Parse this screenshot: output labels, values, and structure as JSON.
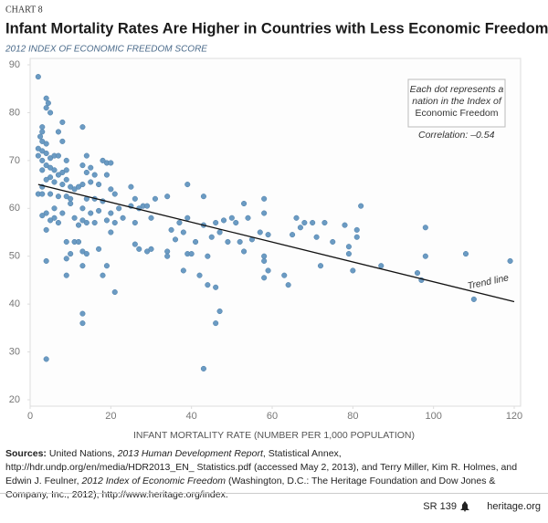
{
  "chart_data": {
    "type": "scatter",
    "kicker": "CHART 8",
    "title": "Infant Mortality Rates Are Higher in Countries with Less Economic Freedom",
    "ylabel": "2012 INDEX OF ECONOMIC FREEDOM SCORE",
    "xlabel": "INFANT MORTALITY RATE (NUMBER PER 1,000 POPULATION)",
    "note": [
      "Each dot represents a",
      "nation in the Index of",
      "Economic Freedom"
    ],
    "correlation": "Correlation: –0.54",
    "trend": {
      "name": "Trend line",
      "x": [
        2,
        120
      ],
      "values": [
        65,
        40.5
      ],
      "color": "#111111"
    },
    "xlim": [
      0,
      120
    ],
    "xticks": [
      0,
      20,
      40,
      60,
      80,
      100,
      120
    ],
    "ylim": [
      20,
      90
    ],
    "yticks": [
      20,
      30,
      40,
      50,
      60,
      70,
      80,
      90
    ],
    "color": "#6b9bc3",
    "x": [
      2,
      4,
      4.5,
      4,
      5,
      3,
      3,
      2.5,
      3,
      4,
      2,
      3,
      4,
      2,
      5,
      3,
      6,
      7,
      4,
      5,
      3,
      6,
      8,
      7,
      5,
      4,
      6,
      8,
      3,
      5,
      2,
      3,
      7,
      9,
      10,
      6,
      4,
      8,
      3,
      6,
      5,
      7,
      4,
      9,
      10,
      9,
      4,
      9,
      4,
      8,
      7,
      8,
      9,
      9,
      9,
      10,
      11,
      10,
      11,
      12,
      11,
      13,
      14,
      13,
      15,
      14,
      16,
      13,
      12,
      15,
      17,
      14,
      16,
      18,
      13,
      15,
      17,
      14,
      13,
      16,
      12,
      13,
      14,
      17,
      13,
      19,
      18,
      13,
      13,
      19,
      18,
      20,
      19,
      20,
      21,
      22,
      20,
      19,
      21,
      20,
      23,
      21,
      25,
      26,
      27,
      25,
      26,
      28,
      29,
      30,
      26,
      27,
      29,
      31,
      30,
      34,
      35,
      34,
      34,
      36,
      37,
      38,
      39,
      38,
      39,
      39,
      40,
      41,
      42,
      43,
      43,
      44,
      44,
      45,
      46,
      47,
      48,
      47,
      46,
      46,
      43,
      49,
      50,
      51,
      52,
      53,
      53,
      54,
      55,
      57,
      58,
      58,
      58,
      58,
      59,
      59,
      58,
      63,
      64,
      65,
      66,
      67,
      68,
      70,
      71,
      72,
      73,
      75,
      78,
      79,
      79,
      80,
      81,
      81,
      82,
      87,
      96,
      97,
      98,
      98,
      108,
      110,
      119
    ],
    "values": [
      87.5,
      83,
      82,
      81,
      80,
      77,
      76,
      75,
      74,
      73.5,
      72.5,
      72,
      71.5,
      71,
      70.5,
      70,
      71,
      71,
      69,
      68.5,
      68,
      68,
      67.5,
      67,
      66.5,
      66,
      65.5,
      65,
      64.5,
      63,
      63,
      63,
      62.5,
      62.5,
      62,
      60,
      59,
      59,
      58.5,
      58,
      57.5,
      57,
      55.5,
      53,
      50.5,
      49.5,
      49,
      46,
      28.5,
      78,
      76,
      74,
      70,
      68,
      66,
      64.5,
      64,
      61,
      58,
      56.5,
      53,
      77,
      71,
      69,
      68.5,
      67.5,
      67,
      65,
      64.5,
      65.5,
      65,
      62,
      62,
      61.5,
      60,
      59,
      59.5,
      57,
      57.5,
      57,
      53,
      51,
      50.5,
      51.5,
      48,
      48,
      46,
      38,
      36,
      69.5,
      70,
      69.5,
      67,
      64,
      63,
      60,
      59,
      57.5,
      57,
      55,
      58,
      42.5,
      64.5,
      62,
      60,
      60.5,
      57,
      60.5,
      60.5,
      58,
      52.5,
      51.5,
      51,
      62,
      51.5,
      62.5,
      55.5,
      51,
      50,
      53.5,
      57,
      55,
      65,
      47,
      58,
      50.5,
      50.5,
      53,
      46,
      62.5,
      56.5,
      50,
      44,
      54,
      57,
      55,
      57.5,
      38.5,
      36,
      43.5,
      26.5,
      53,
      58,
      57,
      53,
      61,
      51,
      58,
      53.5,
      55,
      62,
      59,
      50,
      49,
      47,
      54.5,
      45.5,
      46,
      44,
      54.5,
      58,
      56,
      57,
      57,
      54,
      48,
      57,
      53,
      56.5,
      50.5,
      52,
      47,
      54,
      55.5,
      60.5,
      48,
      46.5,
      45,
      56,
      50,
      50.5,
      41,
      49
    ]
  },
  "sources": [
    {
      "text": "Sources:",
      "bold": true
    },
    {
      "text": " United Nations, "
    },
    {
      "text": "2013 Human Development Report",
      "italic": true
    },
    {
      "text": ", Statistical Annex, http://hdr.undp.org/en/media/HDR2013_EN_ Statistics.pdf (accessed May 2, 2013), and Terry Miller, Kim R. Holmes, and Edwin J. Feulner, "
    },
    {
      "text": "2012 Index of Economic Freedom",
      "italic": true
    },
    {
      "text": " (Washington, D.C.: The Heritage Foundation and Dow Jones & Company, Inc., 2012), http://www.heritage.org/index."
    }
  ],
  "footer": {
    "report": "SR 139",
    "site": "heritage.org"
  }
}
